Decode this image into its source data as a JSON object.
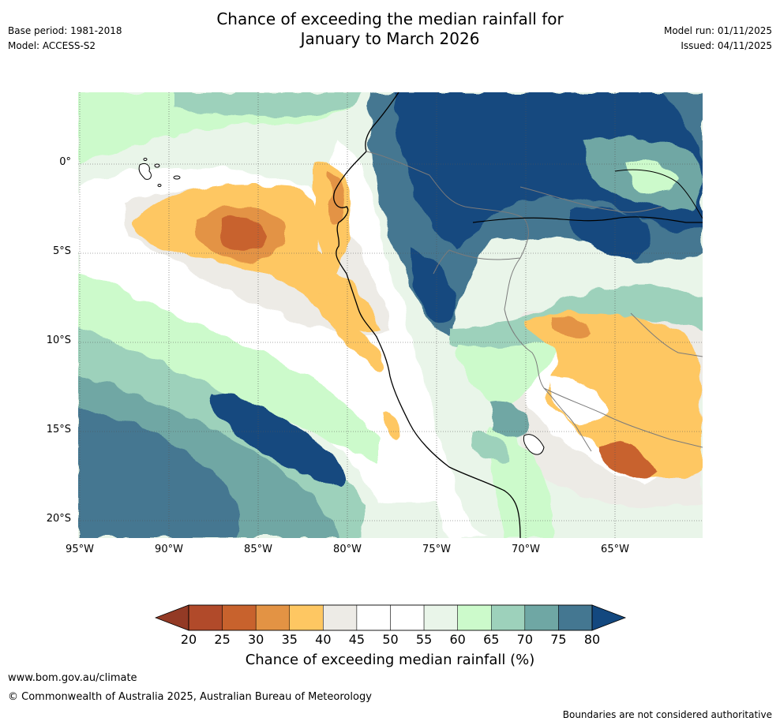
{
  "title_line1": "Chance of exceeding the median rainfall for",
  "title_line2": "January to March 2026",
  "base_period": "Base period: 1981-2018",
  "model": "Model: ACCESS-S2",
  "model_run": "Model run: 01/11/2025",
  "issued": "Issued: 04/11/2025",
  "lat_labels": [
    "0°",
    "5°S",
    "10°S",
    "15°S",
    "20°S"
  ],
  "lon_labels": [
    "95°W",
    "90°W",
    "85°W",
    "80°W",
    "75°W",
    "70°W",
    "65°W"
  ],
  "colorbar": {
    "ticks": [
      "20",
      "25",
      "30",
      "35",
      "40",
      "45",
      "50",
      "55",
      "60",
      "65",
      "70",
      "75",
      "80"
    ],
    "colors": [
      "#b14a2a",
      "#c8622d",
      "#e39344",
      "#fec762",
      "#edebe6",
      "#ffffff",
      "#ffffff",
      "#e9f5e9",
      "#ccfacb",
      "#9dd1bb",
      "#6fa7a4",
      "#447791"
    ],
    "low_color": "#933a25",
    "high_color": "#13487f",
    "title": "Chance of exceeding median rainfall (%)"
  },
  "footer_url": "www.bom.gov.au/climate",
  "footer_copyright": "© Commonwealth of Australia 2025, Australian Bureau of Meteorology",
  "disclaimer": "Boundaries are not considered authoritative"
}
